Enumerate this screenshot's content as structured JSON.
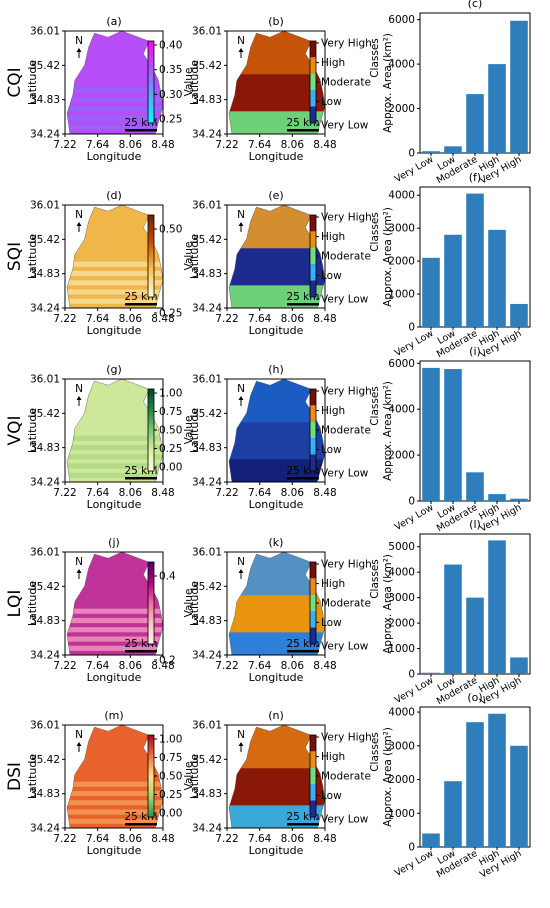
{
  "figure": {
    "rows": [
      {
        "index_label": "CQI",
        "map_panel": {
          "label": "(a)",
          "colorbar_label": "Value",
          "colormap": "cool",
          "gradient": [
            "#00ffff",
            "#ff00ff"
          ],
          "fill_base": "#b64df7",
          "fill_alt": "#8a6cf8",
          "colorbar_ticks": [
            "0.40",
            "0.35",
            "0.30",
            "0.25"
          ]
        },
        "class_panel": {
          "label": "(b)",
          "swatches": [
            "#7a0d05",
            "#f28a0e",
            "#6fe07a",
            "#38b0f5",
            "#1d2b8f"
          ],
          "fill_main": "#8a1808",
          "fill_mid": "#cf5e0a",
          "fill_low": "#6fd07a"
        },
        "bar_panel": {
          "label": "(c)",
          "y_ticks": [
            "0",
            "2000",
            "4000",
            "6000"
          ],
          "bar_color": "#2f7ebc"
        }
      },
      {
        "index_label": "SQI",
        "map_panel": {
          "label": "(d)",
          "colorbar_label": "Value",
          "colormap": "YlOrBr",
          "gradient": [
            "#ffffe5",
            "#fec44f",
            "#cc4c02",
            "#662506"
          ],
          "fill_base": "#f0b64a",
          "fill_alt": "#f8e6a6",
          "colorbar_ticks": [
            "0.50",
            "0.25"
          ]
        },
        "class_panel": {
          "label": "(e)",
          "swatches": [
            "#7a0d05",
            "#f28a0e",
            "#6fe07a",
            "#38b0f5",
            "#1d2b8f"
          ],
          "fill_main": "#1d2b8f",
          "fill_mid": "#f2a020",
          "fill_low": "#6fd07a"
        },
        "bar_panel": {
          "label": "(f)",
          "y_ticks": [
            "0",
            "1000",
            "2000",
            "3000",
            "4000"
          ],
          "bar_color": "#2f7ebc"
        }
      },
      {
        "index_label": "VQI",
        "map_panel": {
          "label": "(g)",
          "colorbar_label": "Value",
          "colormap": "YlGn",
          "gradient": [
            "#ffffe5",
            "#d9f0a3",
            "#78c679",
            "#238443",
            "#004529"
          ],
          "fill_base": "#cfe79a",
          "fill_alt": "#a8d57f",
          "colorbar_ticks": [
            "1.00",
            "0.75",
            "0.50",
            "0.25",
            "0.00"
          ]
        },
        "class_panel": {
          "label": "(h)",
          "swatches": [
            "#7a0d05",
            "#f28a0e",
            "#6fe07a",
            "#38b0f5",
            "#1d2b8f"
          ],
          "fill_main": "#1d3fa5",
          "fill_mid": "#1b62c8",
          "fill_low": "#12207a"
        },
        "bar_panel": {
          "label": "(i)",
          "y_ticks": [
            "0",
            "2000",
            "4000",
            "6000"
          ],
          "bar_color": "#2f7ebc"
        }
      },
      {
        "index_label": "LQI",
        "map_panel": {
          "label": "(j)",
          "colorbar_label": "Value",
          "colormap": "RdPu",
          "gradient": [
            "#fff7f3",
            "#fcc5c0",
            "#f768a1",
            "#ae017e",
            "#49006a"
          ],
          "fill_base": "#c0339a",
          "fill_alt": "#f7a8c2",
          "colorbar_ticks": [
            "0.4",
            "0.2"
          ]
        },
        "class_panel": {
          "label": "(k)",
          "swatches": [
            "#7a0d05",
            "#f28a0e",
            "#6fe07a",
            "#38b0f5",
            "#1d2b8f"
          ],
          "fill_main": "#e8940e",
          "fill_mid": "#3a8fe0",
          "fill_low": "#2d7fd8"
        },
        "bar_panel": {
          "label": "(l)",
          "y_ticks": [
            "0",
            "1000",
            "2000",
            "3000",
            "4000",
            "5000"
          ],
          "bar_color": "#2f7ebc"
        }
      },
      {
        "index_label": "DSI",
        "map_panel": {
          "label": "(m)",
          "colorbar_label": "Value",
          "colormap": "RdYlGn_r",
          "gradient": [
            "#1a9850",
            "#a6d96a",
            "#fee08b",
            "#f46d43",
            "#a50026"
          ],
          "fill_base": "#e8622d",
          "fill_alt": "#f7a65b",
          "colorbar_ticks": [
            "1.00",
            "0.75",
            "0.50",
            "0.25",
            "0.00"
          ]
        },
        "class_panel": {
          "label": "(n)",
          "swatches": [
            "#7a0d05",
            "#f28a0e",
            "#6fe07a",
            "#38b0f5",
            "#1d2b8f"
          ],
          "fill_main": "#8a1808",
          "fill_mid": "#e07a12",
          "fill_low": "#3aa8d8"
        },
        "bar_panel": {
          "label": "(o)",
          "y_ticks": [
            "0",
            "1000",
            "2000",
            "3000",
            "4000"
          ],
          "bar_color": "#2f7ebc"
        }
      }
    ],
    "map_axes": {
      "xlabel": "Longitude",
      "ylabel": "Latitude",
      "x_ticks": [
        "7.22",
        "7.64",
        "8.06",
        "8.48"
      ],
      "y_ticks": [
        "36.01",
        "35.42",
        "34.83",
        "34.24"
      ],
      "north_label": "N",
      "scale_label": "25 km"
    },
    "class_names": [
      "Very High",
      "High",
      "Moderate",
      "Low",
      "Very Low"
    ],
    "bar_axes": {
      "xlabel": "Classes",
      "ylabel": "Approx. Area (km²)"
    }
  },
  "chart_data": [
    {
      "type": "bar",
      "panel": "(c)",
      "categories": [
        "Very Low",
        "Low",
        "Moderate",
        "High",
        "Very High"
      ],
      "values": [
        80,
        300,
        2650,
        4000,
        5950
      ],
      "xlabel": "Classes",
      "ylabel": "Approx. Area (km²)",
      "ylim": [
        0,
        6300
      ]
    },
    {
      "type": "bar",
      "panel": "(f)",
      "categories": [
        "Very Low",
        "Low",
        "Moderate",
        "High",
        "Very High"
      ],
      "values": [
        2100,
        2800,
        4050,
        2950,
        700
      ],
      "xlabel": "Classes",
      "ylabel": "Approx. Area (km²)",
      "ylim": [
        0,
        4250
      ]
    },
    {
      "type": "bar",
      "panel": "(i)",
      "categories": [
        "Very Low",
        "Low",
        "Moderate",
        "High",
        "Very High"
      ],
      "values": [
        5800,
        5750,
        1250,
        300,
        100
      ],
      "xlabel": "Classes",
      "ylabel": "Approx. Area (km²)",
      "ylim": [
        0,
        6100
      ]
    },
    {
      "type": "bar",
      "panel": "(l)",
      "categories": [
        "Very Low",
        "Low",
        "Moderate",
        "High",
        "Very High"
      ],
      "values": [
        50,
        4300,
        3000,
        5250,
        650
      ],
      "xlabel": "Classes",
      "ylabel": "Approx. Area (km²)",
      "ylim": [
        0,
        5500
      ]
    },
    {
      "type": "bar",
      "panel": "(o)",
      "categories": [
        "Very Low",
        "Low",
        "Moderate",
        "High",
        "Very High"
      ],
      "values": [
        400,
        1950,
        3700,
        3950,
        3000
      ],
      "xlabel": "Classes",
      "ylabel": "Approx. Area (km²)",
      "ylim": [
        0,
        4150
      ]
    }
  ]
}
